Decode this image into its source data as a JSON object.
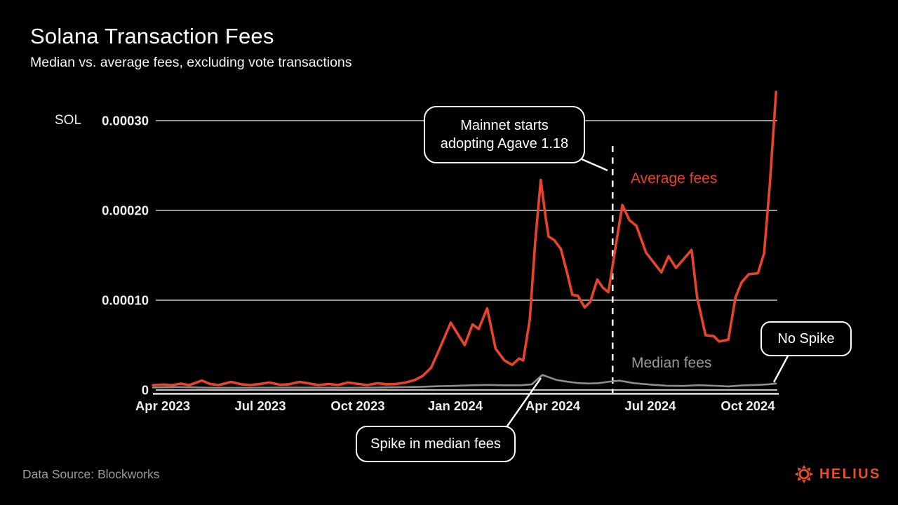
{
  "header": {
    "title": "Solana Transaction Fees",
    "subtitle": "Median vs. average fees, excluding vote transactions"
  },
  "chart_data": {
    "type": "line",
    "title": "Solana Transaction Fees",
    "subtitle": "Median vs. average fees, excluding vote transactions",
    "unit_label": "SOL",
    "grid": true,
    "x_unit": "months_since_Apr_2023",
    "x_ticks": [
      {
        "month": 0,
        "label": "Apr 2023"
      },
      {
        "month": 3,
        "label": "Jul 2023"
      },
      {
        "month": 6,
        "label": "Oct 2023"
      },
      {
        "month": 9,
        "label": "Jan 2024"
      },
      {
        "month": 12,
        "label": "Apr 2024"
      },
      {
        "month": 15,
        "label": "Jul 2024"
      },
      {
        "month": 18,
        "label": "Oct 2024"
      }
    ],
    "y_ticks": [
      {
        "value": 0,
        "label": "0"
      },
      {
        "value": 0.0001,
        "label": "0.00010"
      },
      {
        "value": 0.0002,
        "label": "0.00020"
      },
      {
        "value": 0.0003,
        "label": "0.00030"
      }
    ],
    "y_range": [
      0,
      0.00034
    ],
    "event_line": {
      "x_month": 13.84,
      "label": "Mainnet starts adopting Agave 1.18"
    },
    "series": [
      {
        "name": "Average fees",
        "color": "#e8432b",
        "points": [
          [
            -0.3,
            5.5e-06
          ],
          [
            0.0,
            6e-06
          ],
          [
            0.3,
            5.5e-06
          ],
          [
            0.56,
            7e-06
          ],
          [
            0.82,
            5.5e-06
          ],
          [
            1.2,
            1.05e-05
          ],
          [
            1.46,
            6.7e-06
          ],
          [
            1.72,
            5.5e-06
          ],
          [
            2.1,
            9e-06
          ],
          [
            2.42,
            6.3e-06
          ],
          [
            2.7,
            5.5e-06
          ],
          [
            3.0,
            6.7e-06
          ],
          [
            3.28,
            8.3e-06
          ],
          [
            3.61,
            5.8e-06
          ],
          [
            3.88,
            6.3e-06
          ],
          [
            4.21,
            9e-06
          ],
          [
            4.46,
            7.5e-06
          ],
          [
            4.79,
            5.5e-06
          ],
          [
            5.11,
            6.7e-06
          ],
          [
            5.39,
            5.5e-06
          ],
          [
            5.69,
            8.3e-06
          ],
          [
            6.01,
            6.7e-06
          ],
          [
            6.29,
            5.5e-06
          ],
          [
            6.61,
            7.5e-06
          ],
          [
            6.89,
            6.3e-06
          ],
          [
            7.19,
            6.7e-06
          ],
          [
            7.47,
            8.3e-06
          ],
          [
            7.75,
            1.1e-05
          ],
          [
            8.0,
            1.57e-05
          ],
          [
            8.26,
            2.5e-05
          ],
          [
            8.54,
            4.8e-05
          ],
          [
            8.86,
            7.5e-05
          ],
          [
            9.08,
            6.2e-05
          ],
          [
            9.29,
            5e-05
          ],
          [
            9.53,
            7.3e-05
          ],
          [
            9.72,
            6.8e-05
          ],
          [
            9.98,
            9.1e-05
          ],
          [
            10.24,
            4.6e-05
          ],
          [
            10.51,
            3.3e-05
          ],
          [
            10.75,
            2.8e-05
          ],
          [
            10.96,
            3.5e-05
          ],
          [
            11.09,
            3.3e-05
          ],
          [
            11.29,
            7.8e-05
          ],
          [
            11.46,
            0.000165
          ],
          [
            11.63,
            0.000234
          ],
          [
            11.78,
            0.000192
          ],
          [
            11.87,
            0.000171
          ],
          [
            12.04,
            0.000167
          ],
          [
            12.25,
            0.000157
          ],
          [
            12.45,
            0.000129
          ],
          [
            12.6,
            0.000106
          ],
          [
            12.77,
            0.000105
          ],
          [
            12.98,
            9.2e-05
          ],
          [
            13.15,
            9.8e-05
          ],
          [
            13.37,
            0.000123
          ],
          [
            13.54,
            0.000114
          ],
          [
            13.71,
            0.000109
          ],
          [
            13.93,
            0.000159
          ],
          [
            14.14,
            0.000206
          ],
          [
            14.36,
            0.000189
          ],
          [
            14.57,
            0.000183
          ],
          [
            14.87,
            0.000153
          ],
          [
            15.34,
            0.000131
          ],
          [
            15.56,
            0.000149
          ],
          [
            15.79,
            0.000136
          ],
          [
            16.27,
            0.000156
          ],
          [
            16.44,
            0.000103
          ],
          [
            16.7,
            6.1e-05
          ],
          [
            16.95,
            6e-05
          ],
          [
            17.12,
            5.4e-05
          ],
          [
            17.4,
            5.6e-05
          ],
          [
            17.62,
            0.000103
          ],
          [
            17.81,
            0.00012
          ],
          [
            18.03,
            0.000129
          ],
          [
            18.31,
            0.00013
          ],
          [
            18.5,
            0.000152
          ],
          [
            18.68,
            0.00023
          ],
          [
            18.87,
            0.000332
          ]
        ]
      },
      {
        "name": "Median fees",
        "color": "#8d8d8d",
        "points": [
          [
            -0.3,
            2.8e-06
          ],
          [
            0.5,
            3.2e-06
          ],
          [
            1.5,
            2.4e-06
          ],
          [
            2.5,
            2.4e-06
          ],
          [
            3.5,
            2.6e-06
          ],
          [
            4.5,
            2.6e-06
          ],
          [
            5.5,
            2.4e-06
          ],
          [
            6.5,
            2.6e-06
          ],
          [
            7.5,
            3.2e-06
          ],
          [
            8.0,
            3.6e-06
          ],
          [
            8.5,
            4.2e-06
          ],
          [
            9.0,
            4.6e-06
          ],
          [
            9.5,
            5.2e-06
          ],
          [
            10.0,
            5.6e-06
          ],
          [
            10.5,
            5.2e-06
          ],
          [
            11.0,
            5.2e-06
          ],
          [
            11.35,
            6.2e-06
          ],
          [
            11.68,
            1.68e-05
          ],
          [
            12.11,
            1.12e-05
          ],
          [
            12.45,
            9.2e-06
          ],
          [
            12.76,
            7.8e-06
          ],
          [
            13.1,
            7.2e-06
          ],
          [
            13.4,
            7.6e-06
          ],
          [
            13.77,
            9.4e-06
          ],
          [
            14.05,
            1.04e-05
          ],
          [
            14.5,
            7.6e-06
          ],
          [
            15.0,
            6e-06
          ],
          [
            15.5,
            4.8e-06
          ],
          [
            16.0,
            4.5e-06
          ],
          [
            16.5,
            5.3e-06
          ],
          [
            17.0,
            4.7e-06
          ],
          [
            17.4,
            4e-06
          ],
          [
            17.8,
            5e-06
          ],
          [
            18.3,
            5.6e-06
          ],
          [
            18.6,
            6.2e-06
          ],
          [
            18.87,
            7.2e-06
          ]
        ]
      }
    ]
  },
  "annotations": {
    "agave": {
      "text": "Mainnet starts\nadopting Agave 1.18",
      "connector": [
        827,
        226,
        866,
        243
      ]
    },
    "no_spike": {
      "text": "No Spike",
      "connector": [
        1126,
        502,
        1103,
        545
      ]
    },
    "median_spike": {
      "text": "Spike in median fees",
      "connector": [
        722,
        609,
        771,
        539
      ]
    }
  },
  "footer": {
    "source": "Data Source: Blockworks",
    "brand": "HELIUS"
  },
  "colors": {
    "accent": "#e8432b",
    "median_gray": "#8d8d8d",
    "brand_orange": "#e8502d",
    "background": "#000000"
  }
}
